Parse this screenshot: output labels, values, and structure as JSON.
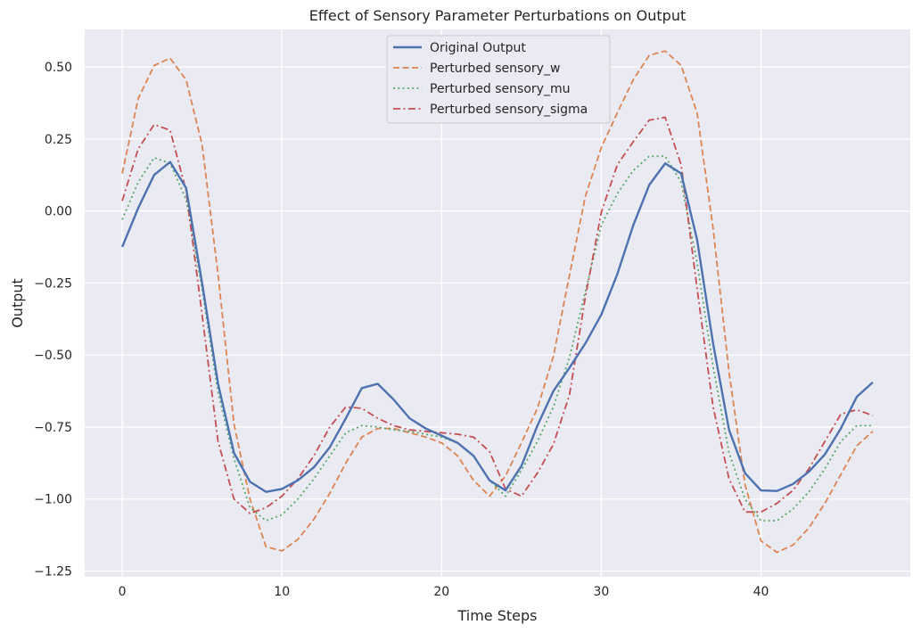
{
  "chart_data": {
    "type": "line",
    "title": "Effect of Sensory Parameter Perturbations on Output",
    "xlabel": "Time Steps",
    "ylabel": "Output",
    "xlim": [
      -2.35,
      49.35
    ],
    "ylim": [
      -1.27,
      0.63
    ],
    "xticks": [
      0,
      10,
      20,
      30,
      40
    ],
    "yticks": [
      0.5,
      0.25,
      0.0,
      -0.25,
      -0.5,
      -0.75,
      -1.0,
      -1.25
    ],
    "ytick_labels": [
      "0.50",
      "0.25",
      "0.00",
      "−0.25",
      "−0.50",
      "−0.75",
      "−1.00",
      "−1.25"
    ],
    "grid": true,
    "legend_position": "upper-center",
    "x": [
      0,
      1,
      2,
      3,
      4,
      5,
      6,
      7,
      8,
      9,
      10,
      11,
      12,
      13,
      14,
      15,
      16,
      17,
      18,
      19,
      20,
      21,
      22,
      23,
      24,
      25,
      26,
      27,
      28,
      29,
      30,
      31,
      32,
      33,
      34,
      35,
      36,
      37,
      38,
      39,
      40,
      41,
      42,
      43,
      44,
      45,
      46,
      47
    ],
    "series": [
      {
        "name": "Original Output",
        "color": "#4c72b0",
        "style": "solid",
        "values": [
          -0.125,
          0.01,
          0.125,
          0.17,
          0.08,
          -0.25,
          -0.6,
          -0.84,
          -0.94,
          -0.975,
          -0.965,
          -0.935,
          -0.89,
          -0.82,
          -0.72,
          -0.615,
          -0.6,
          -0.655,
          -0.72,
          -0.755,
          -0.78,
          -0.805,
          -0.85,
          -0.935,
          -0.97,
          -0.885,
          -0.745,
          -0.625,
          -0.545,
          -0.46,
          -0.36,
          -0.22,
          -0.05,
          0.09,
          0.165,
          0.13,
          -0.1,
          -0.46,
          -0.76,
          -0.91,
          -0.97,
          -0.972,
          -0.948,
          -0.905,
          -0.845,
          -0.755,
          -0.645,
          -0.595
        ]
      },
      {
        "name": "Perturbed sensory_w",
        "color": "#dd8452",
        "style": "dashed",
        "values": [
          0.13,
          0.39,
          0.505,
          0.53,
          0.455,
          0.23,
          -0.22,
          -0.74,
          -1.0,
          -1.165,
          -1.18,
          -1.14,
          -1.07,
          -0.98,
          -0.875,
          -0.785,
          -0.755,
          -0.755,
          -0.77,
          -0.785,
          -0.805,
          -0.85,
          -0.935,
          -0.99,
          -0.92,
          -0.805,
          -0.685,
          -0.505,
          -0.225,
          0.05,
          0.22,
          0.34,
          0.455,
          0.54,
          0.555,
          0.505,
          0.34,
          -0.06,
          -0.56,
          -0.95,
          -1.145,
          -1.185,
          -1.16,
          -1.1,
          -1.015,
          -0.915,
          -0.815,
          -0.765
        ]
      },
      {
        "name": "Perturbed sensory_mu",
        "color": "#55a868",
        "style": "dotted",
        "values": [
          -0.03,
          0.1,
          0.185,
          0.165,
          0.04,
          -0.27,
          -0.63,
          -0.86,
          -1.03,
          -1.075,
          -1.055,
          -1.0,
          -0.93,
          -0.85,
          -0.77,
          -0.745,
          -0.75,
          -0.76,
          -0.765,
          -0.775,
          -0.785,
          -0.805,
          -0.85,
          -0.935,
          -0.99,
          -0.9,
          -0.8,
          -0.68,
          -0.51,
          -0.28,
          -0.05,
          0.06,
          0.14,
          0.19,
          0.19,
          0.1,
          -0.18,
          -0.54,
          -0.84,
          -1.0,
          -1.075,
          -1.075,
          -1.035,
          -0.975,
          -0.895,
          -0.8,
          -0.745,
          -0.745
        ]
      },
      {
        "name": "Perturbed sensory_sigma",
        "color": "#c44e52",
        "style": "dashdot",
        "values": [
          0.035,
          0.215,
          0.3,
          0.28,
          0.07,
          -0.36,
          -0.8,
          -1.0,
          -1.05,
          -1.03,
          -0.99,
          -0.93,
          -0.85,
          -0.75,
          -0.68,
          -0.685,
          -0.72,
          -0.745,
          -0.76,
          -0.765,
          -0.77,
          -0.775,
          -0.785,
          -0.835,
          -0.965,
          -0.99,
          -0.91,
          -0.81,
          -0.64,
          -0.3,
          -0.005,
          0.16,
          0.24,
          0.315,
          0.325,
          0.16,
          -0.27,
          -0.68,
          -0.93,
          -1.045,
          -1.045,
          -1.015,
          -0.97,
          -0.895,
          -0.8,
          -0.705,
          -0.69,
          -0.71
        ]
      }
    ]
  }
}
